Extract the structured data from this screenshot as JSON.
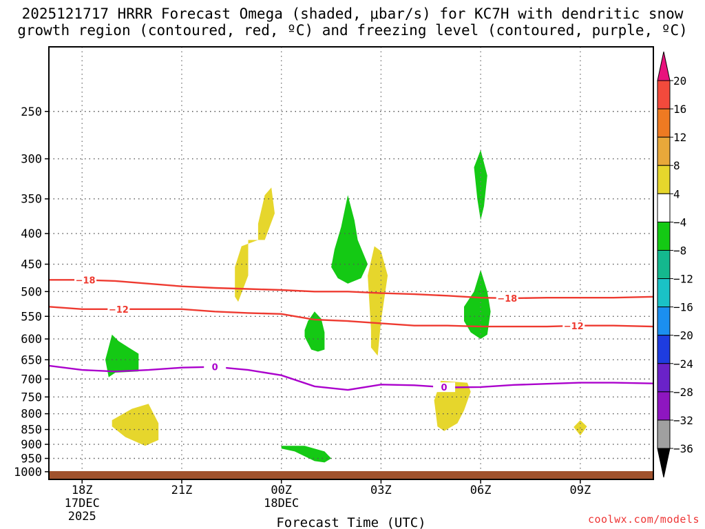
{
  "header": {
    "title_line1": "2025121717 HRRR Forecast Omega (shaded, μbar/s) for KC7H with dendritic snow",
    "title_line2": "growth region (contoured, red, ºC) and freezing level (contoured, purple, ºC)"
  },
  "footer": {
    "credit": "coolwx.com/models"
  },
  "chart_data": {
    "type": "time-height cross section",
    "title": "2025121717 HRRR Forecast Omega (shaded, μbar/s) for KC7H with dendritic snow growth region (contoured, red, ºC) and freezing level (contoured, purple, ºC)",
    "xlabel": "Forecast Time (UTC)",
    "ylabel": "",
    "x_unit": "forecast hour from 17Z 17DEC2025",
    "xlim": [
      0,
      18.2
    ],
    "ylim_pressure_mb": [
      1030,
      195
    ],
    "y_scale": "log",
    "grid": true,
    "x_ticks": [
      {
        "hour": 1,
        "label": "18Z",
        "sub1": "17DEC",
        "sub2": "2025"
      },
      {
        "hour": 4,
        "label": "21Z",
        "sub1": "",
        "sub2": ""
      },
      {
        "hour": 7,
        "label": "00Z",
        "sub1": "18DEC",
        "sub2": ""
      },
      {
        "hour": 10,
        "label": "03Z",
        "sub1": "",
        "sub2": ""
      },
      {
        "hour": 13,
        "label": "06Z",
        "sub1": "",
        "sub2": ""
      },
      {
        "hour": 16,
        "label": "09Z",
        "sub1": "",
        "sub2": ""
      }
    ],
    "y_ticks": [
      250,
      300,
      350,
      400,
      450,
      500,
      550,
      600,
      650,
      700,
      750,
      800,
      850,
      900,
      950,
      1000
    ],
    "y_tick_labels": [
      "250",
      "300",
      "350",
      "400",
      "450",
      "500",
      "550",
      "600",
      "650",
      "700",
      "750",
      "800",
      "850",
      "900",
      "950",
      "1000"
    ],
    "colorbar": {
      "unit": "μbar/s",
      "boundaries": [
        20,
        16,
        12,
        8,
        4,
        -4,
        -8,
        -12,
        -16,
        -20,
        -24,
        -28,
        -32,
        -36
      ],
      "labels": [
        "20",
        "16",
        "12",
        "8",
        "4",
        "−4",
        "−8",
        "−12",
        "−16",
        "−20",
        "−24",
        "−28",
        "−32",
        "−36"
      ],
      "over_color": "#e8127c",
      "under_color": "#000000",
      "colors": [
        "#f24a3c",
        "#ee7a22",
        "#e8a83a",
        "#e6d62c",
        "#ffffff",
        "#14c914",
        "#14b88e",
        "#1ac2c6",
        "#1b8ff0",
        "#1e3ce0",
        "#6a22c8",
        "#8e16c0",
        "#a0a0a0"
      ]
    },
    "omega_regions": [
      {
        "name": "sink-1",
        "color": "#e6d62c",
        "points": [
          [
            1.9,
            820
          ],
          [
            2.5,
            785
          ],
          [
            3.0,
            770
          ],
          [
            3.3,
            830
          ],
          [
            3.3,
            885
          ],
          [
            2.9,
            905
          ],
          [
            2.3,
            875
          ],
          [
            1.9,
            840
          ]
        ]
      },
      {
        "name": "sink-2",
        "color": "#e6d62c",
        "points": [
          [
            5.6,
            510
          ],
          [
            5.6,
            455
          ],
          [
            5.8,
            420
          ],
          [
            6.3,
            410
          ],
          [
            6.3,
            385
          ],
          [
            6.5,
            345
          ],
          [
            6.7,
            335
          ],
          [
            6.8,
            370
          ],
          [
            6.5,
            410
          ],
          [
            6.0,
            410
          ],
          [
            6.0,
            470
          ],
          [
            5.7,
            520
          ]
        ]
      },
      {
        "name": "sink-3",
        "color": "#e6d62c",
        "points": [
          [
            9.7,
            580
          ],
          [
            9.6,
            470
          ],
          [
            9.8,
            420
          ],
          [
            10.0,
            428
          ],
          [
            10.2,
            470
          ],
          [
            10.0,
            560
          ],
          [
            9.9,
            640
          ],
          [
            9.7,
            620
          ]
        ]
      },
      {
        "name": "sink-4",
        "color": "#e6d62c",
        "points": [
          [
            11.6,
            760
          ],
          [
            11.8,
            705
          ],
          [
            12.6,
            710
          ],
          [
            12.7,
            735
          ],
          [
            12.5,
            790
          ],
          [
            12.3,
            830
          ],
          [
            11.9,
            855
          ],
          [
            11.7,
            840
          ]
        ]
      },
      {
        "name": "sink-5",
        "color": "#e6d62c",
        "points": [
          [
            15.8,
            842
          ],
          [
            16.0,
            820
          ],
          [
            16.2,
            840
          ],
          [
            16.0,
            870
          ]
        ]
      },
      {
        "name": "rise-1",
        "color": "#14c914",
        "points": [
          [
            1.7,
            650
          ],
          [
            1.9,
            590
          ],
          [
            2.1,
            605
          ],
          [
            2.4,
            620
          ],
          [
            2.7,
            635
          ],
          [
            2.7,
            680
          ],
          [
            2.0,
            683
          ],
          [
            1.8,
            695
          ]
        ]
      },
      {
        "name": "rise-2",
        "color": "#14c914",
        "points": [
          [
            7.0,
            915
          ],
          [
            7.0,
            905
          ],
          [
            7.7,
            905
          ],
          [
            8.3,
            925
          ],
          [
            8.5,
            950
          ],
          [
            8.3,
            965
          ],
          [
            8.0,
            960
          ],
          [
            7.4,
            925
          ]
        ]
      },
      {
        "name": "rise-3",
        "color": "#14c914",
        "points": [
          [
            7.7,
            580
          ],
          [
            7.8,
            560
          ],
          [
            8.0,
            540
          ],
          [
            8.2,
            555
          ],
          [
            8.3,
            585
          ],
          [
            8.3,
            625
          ],
          [
            8.1,
            630
          ],
          [
            7.9,
            625
          ],
          [
            7.7,
            595
          ]
        ]
      },
      {
        "name": "rise-4",
        "color": "#14c914",
        "points": [
          [
            8.5,
            455
          ],
          [
            8.6,
            425
          ],
          [
            8.8,
            390
          ],
          [
            9.0,
            345
          ],
          [
            9.2,
            380
          ],
          [
            9.3,
            410
          ],
          [
            9.6,
            450
          ],
          [
            9.4,
            475
          ],
          [
            9.0,
            485
          ],
          [
            8.7,
            475
          ]
        ]
      },
      {
        "name": "rise-5",
        "color": "#14c914",
        "points": [
          [
            12.9,
            350
          ],
          [
            12.8,
            310
          ],
          [
            13.0,
            290
          ],
          [
            13.2,
            320
          ],
          [
            13.1,
            360
          ],
          [
            13.0,
            380
          ]
        ]
      },
      {
        "name": "rise-6",
        "color": "#14c914",
        "points": [
          [
            12.5,
            560
          ],
          [
            12.5,
            530
          ],
          [
            12.8,
            500
          ],
          [
            13.0,
            460
          ],
          [
            13.2,
            500
          ],
          [
            13.3,
            540
          ],
          [
            13.2,
            590
          ],
          [
            13.0,
            600
          ],
          [
            12.7,
            585
          ]
        ]
      }
    ],
    "isotherms": [
      {
        "name": "-18 °C",
        "label": "−18",
        "color": "#ee3a30",
        "x": [
          0,
          1,
          2,
          3,
          4,
          5,
          6,
          7,
          8,
          9,
          10,
          11,
          12,
          13,
          14,
          15,
          16,
          17,
          18.2
        ],
        "y": [
          478,
          478,
          480,
          485,
          490,
          493,
          495,
          497,
          500,
          500,
          503,
          505,
          508,
          512,
          513,
          512,
          512,
          512,
          510
        ],
        "label_hours": [
          1.1,
          13.8
        ]
      },
      {
        "name": "-12 °C",
        "label": "−12",
        "color": "#ee3a30",
        "x": [
          0,
          1,
          2,
          3,
          4,
          5,
          6,
          7,
          8,
          9,
          10,
          11,
          12,
          13,
          14,
          15,
          16,
          17,
          18.2
        ],
        "y": [
          530,
          535,
          535,
          535,
          535,
          540,
          543,
          545,
          557,
          560,
          565,
          570,
          570,
          572,
          572,
          572,
          570,
          570,
          572
        ],
        "label_hours": [
          2.1,
          15.8
        ]
      },
      {
        "name": "0 °C freezing level",
        "label": "0",
        "color": "#aa00cc",
        "x": [
          0,
          1,
          2,
          3,
          4,
          5,
          6,
          7,
          8,
          9,
          10,
          11,
          12,
          13,
          14,
          15,
          16,
          17,
          18.2
        ],
        "y": [
          665,
          676,
          680,
          676,
          670,
          668,
          676,
          690,
          720,
          730,
          715,
          717,
          723,
          722,
          716,
          713,
          710,
          710,
          712
        ],
        "label_hours": [
          5.0,
          11.9
        ]
      }
    ],
    "terrain_color": "#a0522d"
  }
}
